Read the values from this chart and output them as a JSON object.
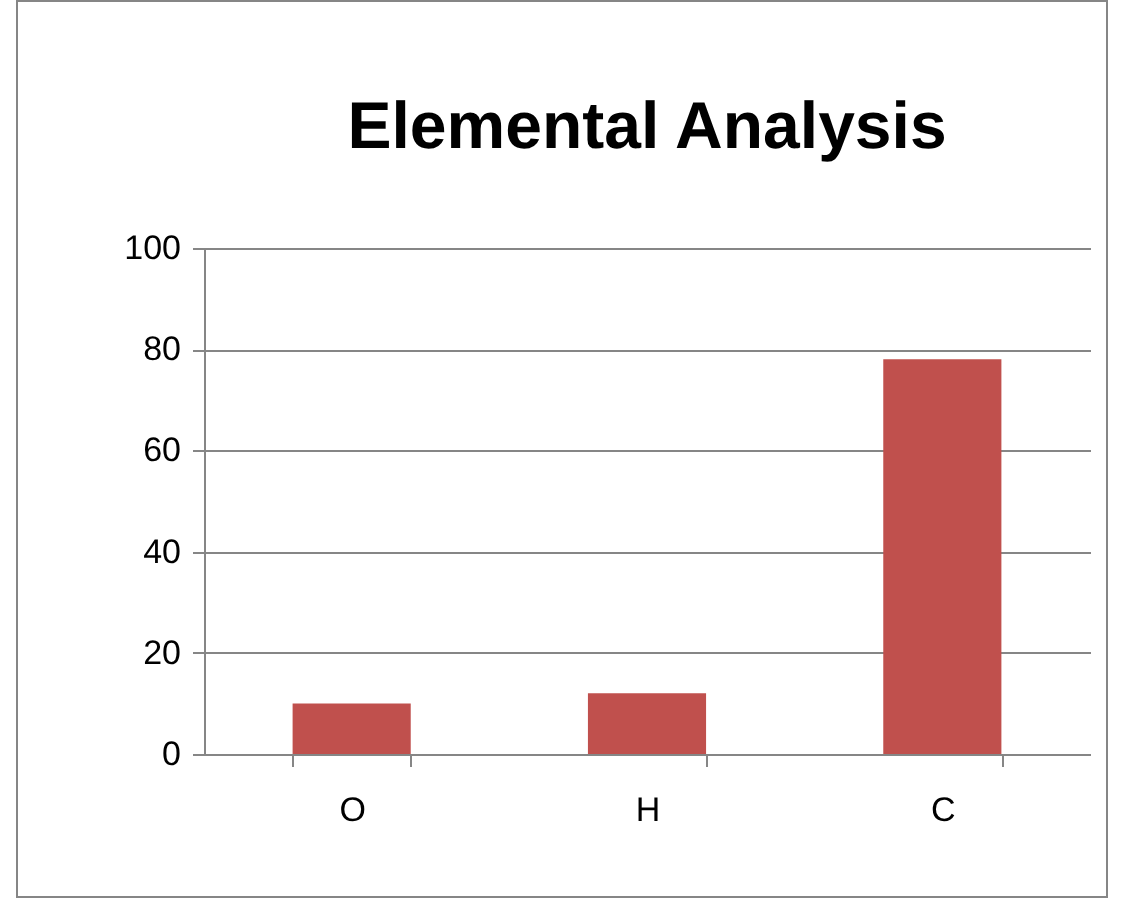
{
  "chart_data": {
    "type": "bar",
    "title": "Elemental  Analysis",
    "categories": [
      "O",
      "H",
      "C"
    ],
    "values": [
      10,
      12,
      78
    ],
    "color": "#c0504d",
    "ylim": [
      0,
      100
    ],
    "yticks": [
      0,
      20,
      40,
      60,
      80,
      100
    ],
    "grid": "y"
  }
}
